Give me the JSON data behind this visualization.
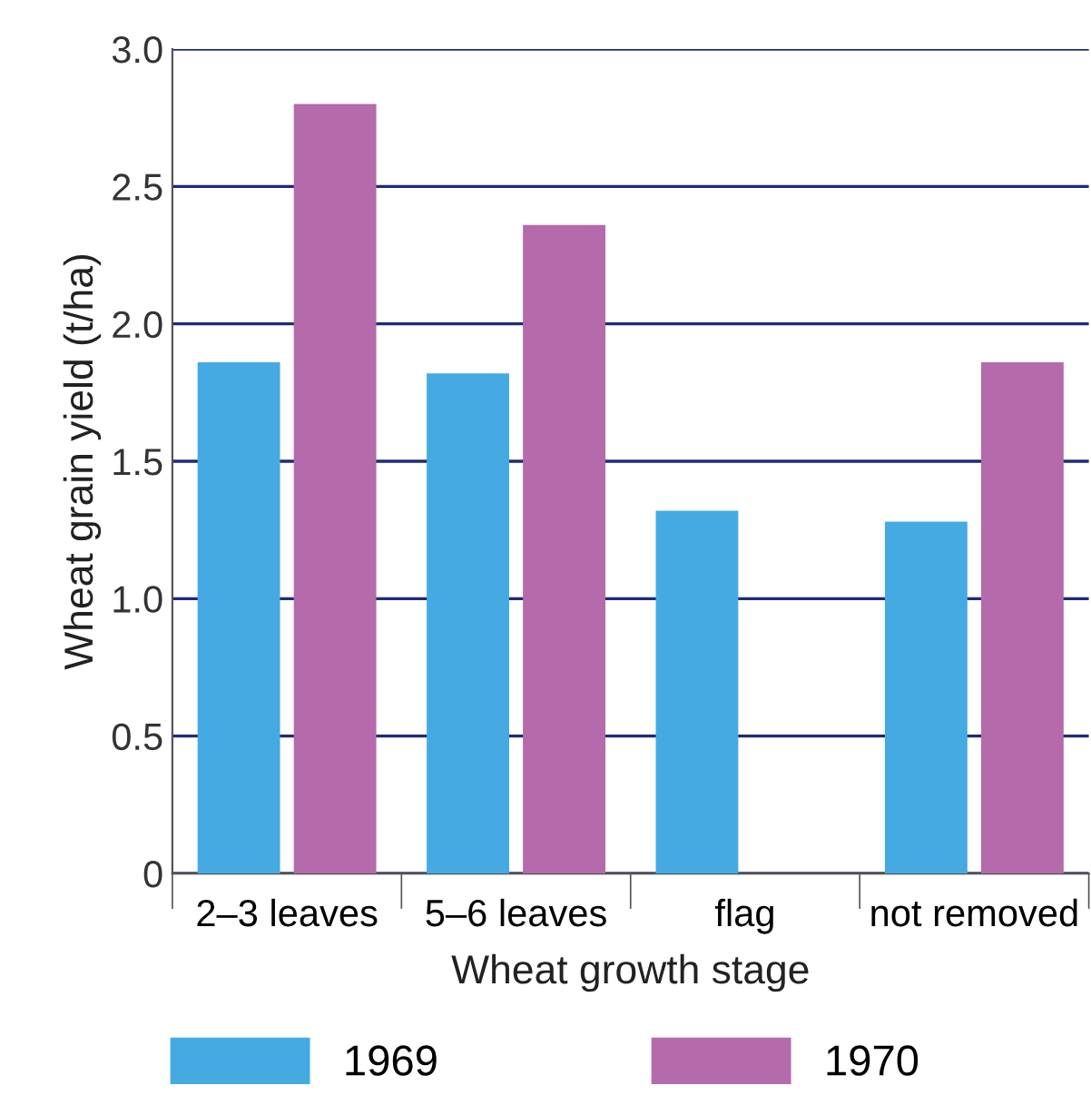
{
  "chart_data": {
    "type": "bar",
    "xlabel": "Wheat growth stage",
    "ylabel": "Wheat grain yield (t/ha)",
    "categories": [
      "2–3 leaves",
      "5–6 leaves",
      "flag",
      "not removed"
    ],
    "series": [
      {
        "name": "1969",
        "color": "#45aae2",
        "values": [
          1.86,
          1.82,
          1.32,
          1.28
        ]
      },
      {
        "name": "1970",
        "color": "#b46aab",
        "values": [
          2.8,
          2.36,
          null,
          1.86
        ]
      }
    ],
    "ylim": [
      0,
      3.0
    ],
    "yticks": [
      {
        "value": 0,
        "label": "0"
      },
      0.5,
      {
        "value": 1,
        "label": "1.0"
      },
      1.5,
      {
        "value": 2,
        "label": "2.0"
      },
      2.5,
      {
        "value": 3,
        "label": "3.0"
      }
    ],
    "grid": "y",
    "legend": "bottom"
  }
}
